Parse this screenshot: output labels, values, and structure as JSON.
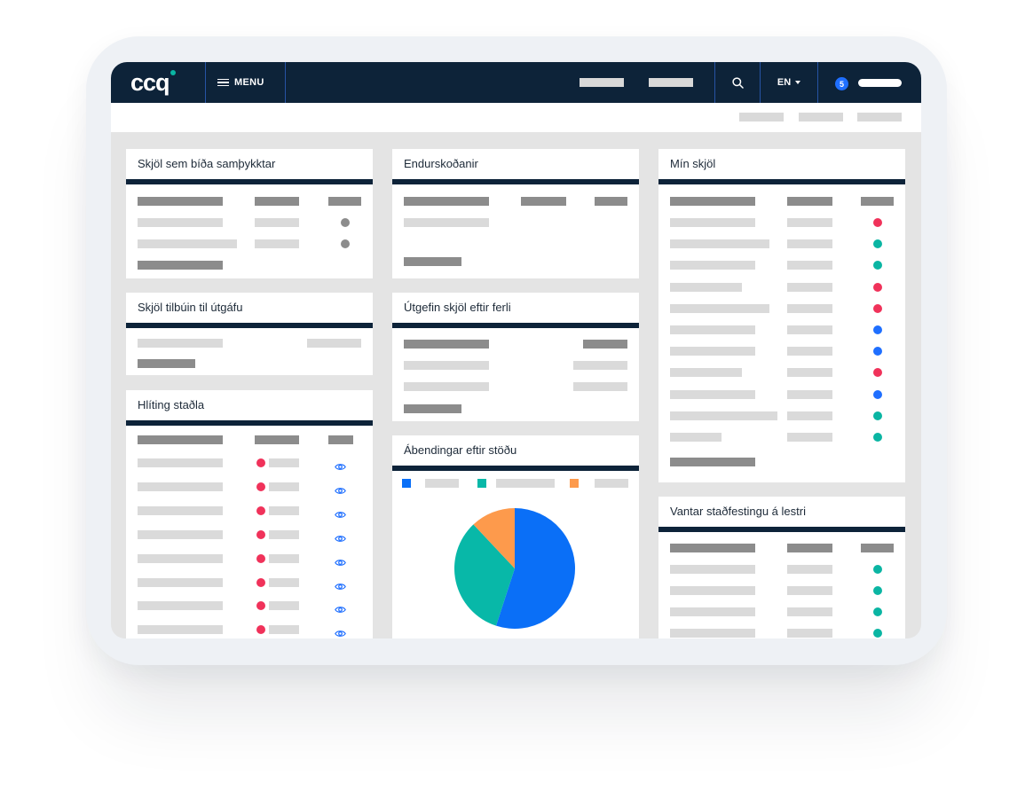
{
  "header": {
    "logo": "CCQ",
    "menu_label": "MENU",
    "language": "EN",
    "notification_count": "5"
  },
  "icons": {
    "menu": "hamburger-icon",
    "search": "search-icon",
    "language_caret": "caret-down-icon",
    "view": "eye-icon"
  },
  "colors": {
    "navy": "#0d2339",
    "accent_teal": "#0ab5a3",
    "status_red": "#f0325a",
    "status_teal": "#0ab5a3",
    "status_blue": "#1f6fff",
    "status_grey": "#8c8c8c",
    "chart_blue": "#0a6ff7",
    "chart_teal": "#08b8a8",
    "chart_orange": "#fd9a4c"
  },
  "cards": {
    "pending_approval": {
      "title": "Skjöl sem bíða samþykktar",
      "status_dots": [
        "grey",
        "grey"
      ]
    },
    "reviews": {
      "title": "Endurskoðanir"
    },
    "my_documents": {
      "title": "Mín skjöl",
      "status_dots": [
        "red",
        "teal",
        "teal",
        "red",
        "red",
        "blue",
        "blue",
        "red",
        "blue",
        "teal",
        "teal"
      ]
    },
    "ready_to_publish": {
      "title": "Skjöl tilbúin til útgáfu"
    },
    "published_by_process": {
      "title": "Útgefin skjöl eftir ferli"
    },
    "standards_compliance": {
      "title": "Hlíting staðla",
      "row_status": [
        "red",
        "red",
        "red",
        "red",
        "red",
        "red",
        "red",
        "red"
      ]
    },
    "findings_by_status": {
      "title": "Ábendingar eftir stöðu"
    },
    "missing_read_confirmation": {
      "title": "Vantar staðfestingu á lestri",
      "status_dots": [
        "teal",
        "teal",
        "teal",
        "teal"
      ]
    }
  },
  "chart_data": {
    "type": "pie",
    "title": "Ábendingar eftir stöðu",
    "slices": [
      {
        "color": "#0a6ff7",
        "value": 0.55
      },
      {
        "color": "#08b8a8",
        "value": 0.33
      },
      {
        "color": "#fd9a4c",
        "value": 0.12
      }
    ],
    "legend": "top"
  }
}
